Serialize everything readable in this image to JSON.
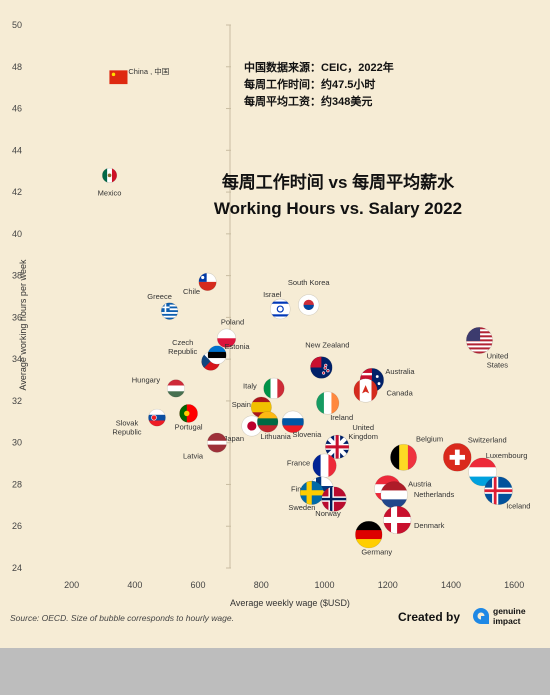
{
  "chart_data": {
    "type": "scatter",
    "title": "Working Hours vs. Salary 2022",
    "title_cn": "每周工作时间 vs 每周平均薪水",
    "xlabel": "Average weekly wage ($USD)",
    "ylabel": "Average working hours per week",
    "xlim": [
      100,
      1650
    ],
    "ylim": [
      24,
      50
    ],
    "xticks": [
      200,
      400,
      600,
      800,
      1000,
      1200,
      1400,
      1600
    ],
    "yticks": [
      24,
      26,
      28,
      30,
      32,
      34,
      36,
      38,
      40,
      42,
      44,
      46,
      48,
      50
    ],
    "grid": false,
    "points": [
      {
        "label": "China , 中国",
        "x": 348,
        "y": 47.5,
        "flag": "china"
      },
      {
        "label": "Mexico",
        "x": 320,
        "y": 42.8,
        "flag": "mexico"
      },
      {
        "label": "Greece",
        "x": 510,
        "y": 36.3,
        "flag": "greece"
      },
      {
        "label": "Chile",
        "x": 630,
        "y": 37.7,
        "flag": "chile"
      },
      {
        "label": "Israel",
        "x": 860,
        "y": 36.4,
        "flag": "israel"
      },
      {
        "label": "South Korea",
        "x": 950,
        "y": 36.6,
        "flag": "south-korea"
      },
      {
        "label": "Poland",
        "x": 690,
        "y": 35.0,
        "flag": "poland"
      },
      {
        "label": "Czech Republic",
        "x": 640,
        "y": 33.9,
        "flag": "czech-republic"
      },
      {
        "label": "Estonia",
        "x": 660,
        "y": 34.2,
        "flag": "estonia"
      },
      {
        "label": "New Zealand",
        "x": 990,
        "y": 33.6,
        "flag": "new-zealand"
      },
      {
        "label": "Australia",
        "x": 1150,
        "y": 33.0,
        "flag": "australia"
      },
      {
        "label": "United States",
        "x": 1490,
        "y": 34.9,
        "flag": "united-states"
      },
      {
        "label": "Hungary",
        "x": 530,
        "y": 32.6,
        "flag": "hungary"
      },
      {
        "label": "Italy",
        "x": 840,
        "y": 32.6,
        "flag": "italy"
      },
      {
        "label": "Canada",
        "x": 1130,
        "y": 32.5,
        "flag": "canada"
      },
      {
        "label": "Spain",
        "x": 800,
        "y": 31.7,
        "flag": "spain"
      },
      {
        "label": "Ireland",
        "x": 1010,
        "y": 31.9,
        "flag": "ireland"
      },
      {
        "label": "Slovak Republic",
        "x": 470,
        "y": 31.2,
        "flag": "slovak-republic"
      },
      {
        "label": "Portugal",
        "x": 570,
        "y": 31.4,
        "flag": "portugal"
      },
      {
        "label": "Japan",
        "x": 770,
        "y": 30.8,
        "flag": "japan"
      },
      {
        "label": "Lithuania",
        "x": 820,
        "y": 31.0,
        "flag": "lithuania"
      },
      {
        "label": "Slovenia",
        "x": 900,
        "y": 31.0,
        "flag": "slovenia"
      },
      {
        "label": "Latvia",
        "x": 660,
        "y": 30.0,
        "flag": "latvia"
      },
      {
        "label": "United Kingdom",
        "x": 1040,
        "y": 29.8,
        "flag": "united-kingdom"
      },
      {
        "label": "Belgium",
        "x": 1250,
        "y": 29.3,
        "flag": "belgium"
      },
      {
        "label": "Switzerland",
        "x": 1420,
        "y": 29.3,
        "flag": "switzerland"
      },
      {
        "label": "Luxembourg",
        "x": 1500,
        "y": 28.6,
        "flag": "luxembourg"
      },
      {
        "label": "France",
        "x": 1000,
        "y": 28.9,
        "flag": "france"
      },
      {
        "label": "Finland",
        "x": 990,
        "y": 27.8,
        "flag": "finland"
      },
      {
        "label": "Austria",
        "x": 1200,
        "y": 27.8,
        "flag": "austria"
      },
      {
        "label": "Netherlands",
        "x": 1220,
        "y": 27.5,
        "flag": "netherlands"
      },
      {
        "label": "Iceland",
        "x": 1550,
        "y": 27.7,
        "flag": "iceland"
      },
      {
        "label": "Sweden",
        "x": 960,
        "y": 27.6,
        "flag": "sweden"
      },
      {
        "label": "Norway",
        "x": 1030,
        "y": 27.3,
        "flag": "norway"
      },
      {
        "label": "Denmark",
        "x": 1230,
        "y": 26.3,
        "flag": "denmark"
      },
      {
        "label": "Germany",
        "x": 1140,
        "y": 25.6,
        "flag": "germany"
      }
    ]
  },
  "note": {
    "line1": "中国数据来源：CEIC，2022年",
    "line2": "每周工作时间：约47.5小时",
    "line3": "每周平均工资：约348美元"
  },
  "source": "Source: OECD. Size of bubble corresponds to hourly wage.",
  "credit": {
    "label": "Created by",
    "brand_line1": "genuine",
    "brand_line2": "impact"
  }
}
